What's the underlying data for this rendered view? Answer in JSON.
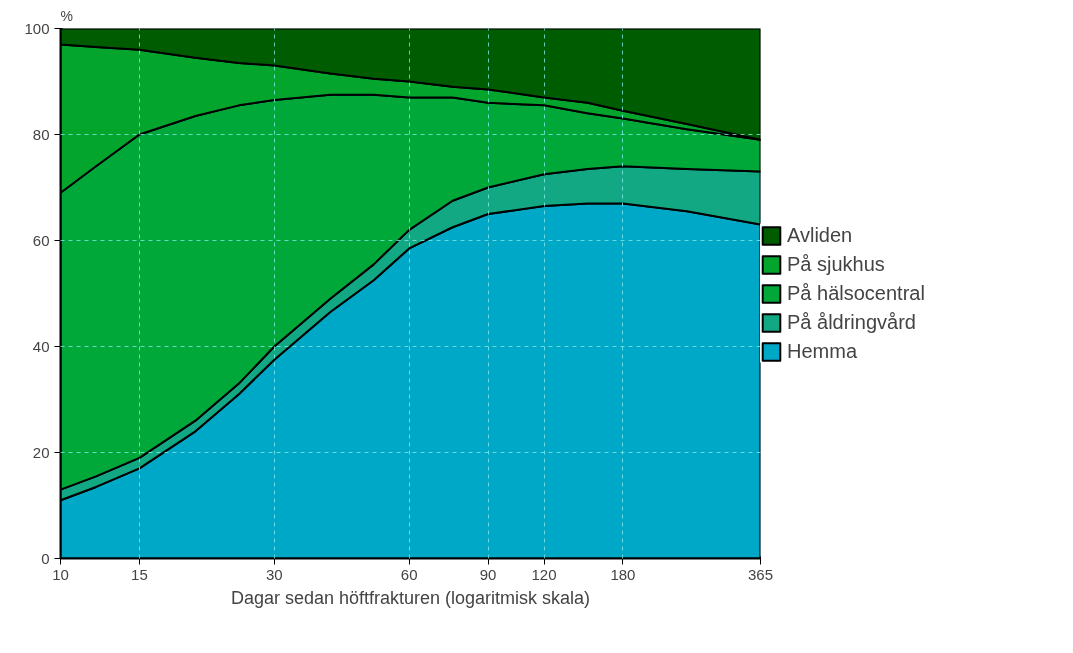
{
  "chart_data": {
    "type": "area",
    "stacked": true,
    "xlabel": "Dagar sedan höftfrakturen (logaritmisk skala)",
    "ylabel": "%",
    "log": "x",
    "x": [
      10,
      12,
      15,
      20,
      25,
      30,
      40,
      50,
      60,
      75,
      90,
      120,
      150,
      180,
      250,
      365
    ],
    "series": [
      {
        "name": "Hemma",
        "color": "#00a8c8",
        "values": [
          11,
          13.5,
          17,
          24,
          31,
          37.5,
          46.5,
          52.5,
          58.5,
          62.5,
          65,
          66.5,
          67,
          67,
          65.5,
          63
        ]
      },
      {
        "name": "På åldringvård",
        "color": "#12a884",
        "values": [
          2,
          2,
          2,
          2,
          2,
          2.5,
          2.5,
          3,
          3.5,
          5,
          5,
          6,
          6.5,
          7,
          8,
          10
        ]
      },
      {
        "name": "På hälsocentral",
        "color": "#00a83a",
        "values": [
          56,
          58.5,
          61,
          57.5,
          52.5,
          46.5,
          38.5,
          32,
          25,
          19.5,
          16,
          13,
          10.5,
          9,
          7.5,
          6
        ]
      },
      {
        "name": "På sjukhus",
        "color": "#03a52c",
        "values": [
          28,
          22.5,
          16,
          11,
          8,
          6.5,
          4,
          3,
          3,
          2,
          2.5,
          1.5,
          2,
          1.5,
          1,
          0
        ]
      },
      {
        "name": "Avliden",
        "color": "#005c00",
        "values": [
          3,
          3.5,
          4,
          5.5,
          6.5,
          7,
          8.5,
          9.5,
          10,
          11,
          11.5,
          13,
          14,
          15.5,
          18,
          21
        ]
      }
    ],
    "xlim": [
      10,
      365
    ],
    "xticks": [
      10,
      15,
      30,
      60,
      90,
      120,
      180,
      365
    ],
    "ylim": [
      0,
      100
    ],
    "yticks": [
      0,
      20,
      40,
      60,
      80,
      100
    ],
    "grid": true,
    "legend": "right"
  }
}
